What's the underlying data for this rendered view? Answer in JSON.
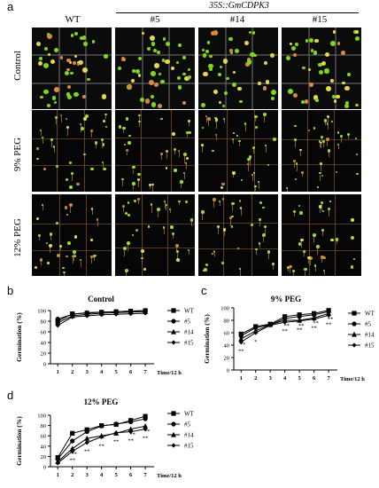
{
  "panel_labels": {
    "a": "a",
    "b": "b",
    "c": "c",
    "d": "d"
  },
  "header": {
    "transgene": "35S::GmCDPK3",
    "columns": [
      "WT",
      "#5",
      "#14",
      "#15"
    ]
  },
  "rows": [
    "Control",
    "9% PEG",
    "12% PEG"
  ],
  "chart_data": [
    {
      "type": "line",
      "title": "Control",
      "ylabel": "Germination (%)",
      "xlabel": "Time/12 h",
      "x": [
        1,
        2,
        3,
        4,
        5,
        6,
        7
      ],
      "ylim": [
        0,
        100
      ],
      "yticks": [
        0,
        20,
        40,
        60,
        80,
        100
      ],
      "series": [
        {
          "name": "WT",
          "marker": "square",
          "values": [
            80,
            94,
            95,
            97,
            98,
            99,
            100
          ],
          "sig": [
            "",
            "",
            "",
            "",
            "",
            "",
            ""
          ]
        },
        {
          "name": "#5",
          "marker": "circle",
          "values": [
            84,
            93,
            96,
            97,
            98,
            99,
            100
          ],
          "sig": [
            "",
            "",
            "",
            "",
            "",
            "",
            ""
          ]
        },
        {
          "name": "#14",
          "marker": "triangle",
          "values": [
            77,
            90,
            93,
            95,
            96,
            97,
            98
          ],
          "sig": [
            "",
            "",
            "",
            "",
            "",
            "",
            ""
          ]
        },
        {
          "name": "#15",
          "marker": "diamond",
          "values": [
            72,
            88,
            90,
            92,
            93,
            94,
            95
          ],
          "sig": [
            "",
            "",
            "",
            "",
            "",
            "",
            ""
          ]
        }
      ]
    },
    {
      "type": "line",
      "title": "9% PEG",
      "ylabel": "Germination (%)",
      "xlabel": "Time/12 h",
      "x": [
        1,
        2,
        3,
        4,
        5,
        6,
        7
      ],
      "ylim": [
        0,
        100
      ],
      "yticks": [
        0,
        20,
        40,
        60,
        80,
        100
      ],
      "series": [
        {
          "name": "WT",
          "marker": "square",
          "values": [
            58,
            70,
            74,
            86,
            89,
            91,
            96
          ],
          "sig": [
            "",
            "",
            "",
            "",
            "",
            "",
            ""
          ]
        },
        {
          "name": "#5",
          "marker": "circle",
          "values": [
            55,
            68,
            73,
            83,
            86,
            89,
            94
          ],
          "sig": [
            "",
            "",
            "",
            "",
            "",
            "",
            ""
          ]
        },
        {
          "name": "#14",
          "marker": "triangle",
          "values": [
            50,
            63,
            73,
            80,
            80,
            84,
            91
          ],
          "sig": [
            "**",
            "",
            "",
            "**",
            "**",
            "**",
            "**"
          ]
        },
        {
          "name": "#15",
          "marker": "diamond",
          "values": [
            45,
            60,
            72,
            77,
            79,
            82,
            88
          ],
          "sig": [
            "**",
            "*",
            "",
            "**",
            "**",
            "**",
            "**"
          ]
        }
      ]
    },
    {
      "type": "line",
      "title": "12% PEG",
      "ylabel": "Germination (%)",
      "xlabel": "Time/12 h",
      "x": [
        1,
        2,
        3,
        4,
        5,
        6,
        7
      ],
      "ylim": [
        0,
        100
      ],
      "yticks": [
        0,
        20,
        40,
        60,
        80,
        100
      ],
      "series": [
        {
          "name": "WT",
          "marker": "square",
          "values": [
            18,
            65,
            72,
            80,
            82,
            90,
            98
          ],
          "sig": [
            "",
            "",
            "",
            "",
            "",
            "",
            ""
          ]
        },
        {
          "name": "#5",
          "marker": "circle",
          "values": [
            15,
            50,
            68,
            79,
            83,
            87,
            93
          ],
          "sig": [
            "",
            "",
            "",
            "",
            "",
            "",
            ""
          ]
        },
        {
          "name": "#14",
          "marker": "triangle",
          "values": [
            10,
            35,
            55,
            60,
            65,
            73,
            79
          ],
          "sig": [
            "",
            "**",
            "",
            "",
            "",
            "**",
            "**"
          ]
        },
        {
          "name": "#15",
          "marker": "diamond",
          "values": [
            7,
            30,
            47,
            58,
            66,
            68,
            73
          ],
          "sig": [
            "",
            "**",
            "**",
            "**",
            "**",
            "**",
            "**"
          ]
        }
      ]
    }
  ]
}
